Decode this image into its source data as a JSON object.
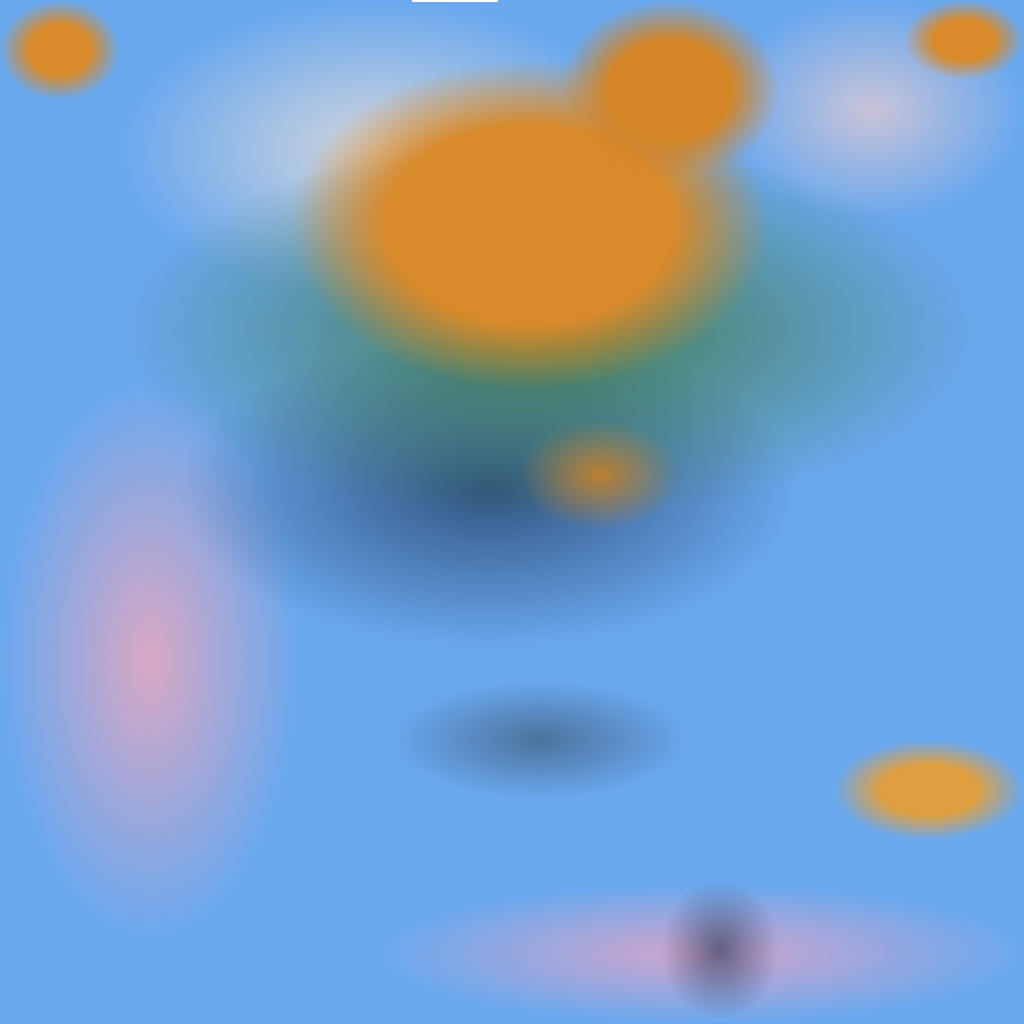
{
  "image": {
    "colors": {
      "ocean_blue": "#6aa8ee",
      "cloud_orange": "#d98a2a",
      "cloud_green": "#3f7a3a",
      "haze_pink": "#d9a3c0",
      "haze_pale": "#c8d4e0",
      "shadow_dark": "#2a4a70"
    }
  }
}
